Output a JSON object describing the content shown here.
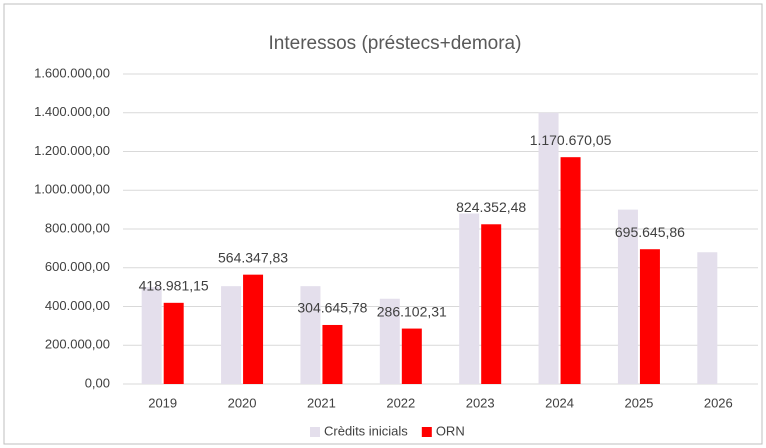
{
  "chart_data": {
    "type": "bar",
    "title": "Interessos (préstecs+demora)",
    "categories": [
      "2019",
      "2020",
      "2021",
      "2022",
      "2023",
      "2024",
      "2025",
      "2026"
    ],
    "series": [
      {
        "name": "Crèdits inicials",
        "color": "#e4dfec",
        "values": [
          500000,
          505000,
          505000,
          440000,
          880000,
          1400000,
          900000,
          680000
        ]
      },
      {
        "name": "ORN",
        "color": "#ff0000",
        "values": [
          418981.15,
          564347.83,
          304645.78,
          286102.31,
          824352.48,
          1170670.05,
          695645.86,
          null
        ],
        "value_labels": [
          "418.981,15",
          "564.347,83",
          "304.645,78",
          "286.102,31",
          "824.352,48",
          "1.170.670,05",
          "695.645,86",
          null
        ]
      }
    ],
    "ylim": [
      0,
      1600000
    ],
    "yticks": [
      {
        "value": 0,
        "label": "0,00"
      },
      {
        "value": 200000,
        "label": "200.000,00"
      },
      {
        "value": 400000,
        "label": "400.000,00"
      },
      {
        "value": 600000,
        "label": "600.000,00"
      },
      {
        "value": 800000,
        "label": "800.000,00"
      },
      {
        "value": 1000000,
        "label": "1.000.000,00"
      },
      {
        "value": 1200000,
        "label": "1.200.000,00"
      },
      {
        "value": 1400000,
        "label": "1.400.000,00"
      },
      {
        "value": 1600000,
        "label": "1.600.000,00"
      }
    ],
    "grid": true,
    "legend": "bottom"
  }
}
